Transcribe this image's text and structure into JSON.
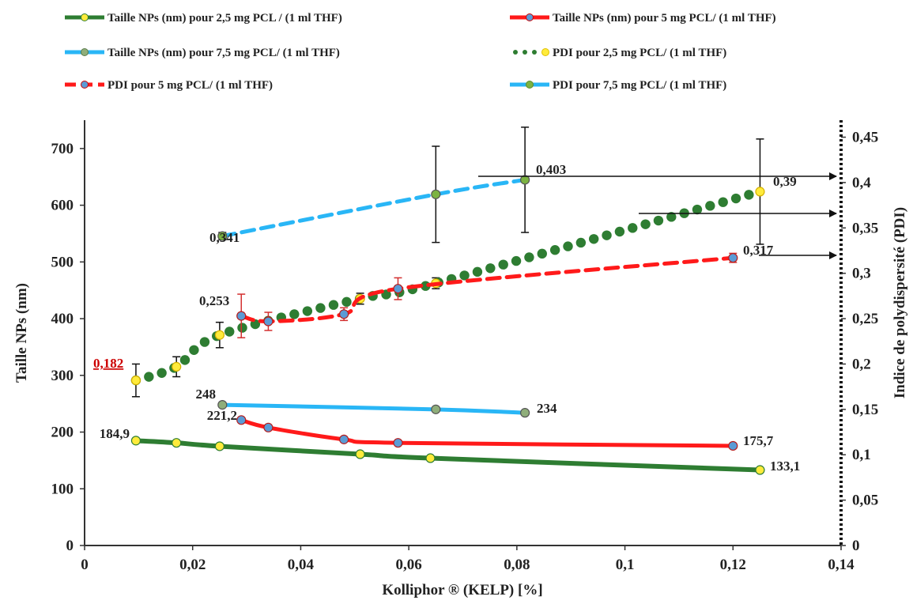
{
  "chart_data": {
    "type": "line",
    "xlabel": "Kolliphor ® (KELP) [%]",
    "ylabel": "Taille NPs (nm)",
    "y2label": "Indice de polydispersité (PDI)",
    "xlim": [
      0,
      0.14
    ],
    "ylim": [
      0,
      750
    ],
    "y2lim": [
      0,
      0.46875
    ],
    "x_ticks": [
      "0",
      "0,02",
      "0,04",
      "0,06",
      "0,08",
      "0,1",
      "0,12",
      "0,14"
    ],
    "y_ticks": [
      "0",
      "100",
      "200",
      "300",
      "400",
      "500",
      "600",
      "700"
    ],
    "y2_ticks": [
      "0",
      "0,05",
      "0,1",
      "0,15",
      "0,2",
      "0,25",
      "0,3",
      "0,35",
      "0,4",
      "0,45"
    ],
    "legend_position": "top",
    "series": [
      {
        "name": "Taille NPs (nm) pour 2,5 mg PCL / (1 ml THF)",
        "axis": "left",
        "style": "solid",
        "color": "#2e7d32",
        "marker_color": "#ffeb3b",
        "x": [
          0.0095,
          0.017,
          0.025,
          0.051,
          0.064,
          0.125
        ],
        "y": [
          184.9,
          181,
          175,
          161,
          154,
          133.1
        ]
      },
      {
        "name": "Taille NPs (nm) pour 5 mg PCL/ (1 ml THF)",
        "axis": "left",
        "style": "solid",
        "color": "#ff1a1a",
        "marker_color": "#5b9bd5",
        "x": [
          0.029,
          0.034,
          0.048,
          0.058,
          0.12
        ],
        "y": [
          221.2,
          208,
          187,
          181,
          175.7
        ]
      },
      {
        "name": "Taille NPs (nm) pour 7,5 mg PCL/ (1 ml THF)",
        "axis": "left",
        "style": "solid",
        "color": "#29b6f6",
        "marker_color": "#8fae7a",
        "x": [
          0.0255,
          0.065,
          0.0815
        ],
        "y": [
          248,
          240,
          234
        ]
      },
      {
        "name": "PDI pour 2,5 mg PCL/ (1 ml THF)",
        "axis": "right",
        "style": "dotted",
        "color": "#2e7d32",
        "marker_color": "#ffeb3b",
        "x": [
          0.0095,
          0.017,
          0.025,
          0.051,
          0.065,
          0.125
        ],
        "y": [
          0.182,
          0.197,
          0.232,
          0.272,
          0.289,
          0.39
        ],
        "err": [
          0.018,
          0.011,
          0.014,
          0.006,
          0.006,
          0.058
        ]
      },
      {
        "name": "PDI pour 5 mg PCL/ (1 ml THF)",
        "axis": "right",
        "style": "dashed",
        "color": "#ff1a1a",
        "marker_color": "#5b9bd5",
        "x": [
          0.029,
          0.034,
          0.048,
          0.058,
          0.12
        ],
        "y": [
          0.253,
          0.247,
          0.255,
          0.283,
          0.317
        ],
        "err": [
          0.024,
          0.01,
          0.007,
          0.012,
          0.005
        ]
      },
      {
        "name": "PDI pour 7,5 mg PCL/ (1 ml THF)",
        "axis": "right",
        "style": "dashed",
        "color": "#29b6f6",
        "marker_color": "#7cb342",
        "x": [
          0.0255,
          0.065,
          0.0815
        ],
        "y": [
          0.341,
          0.387,
          0.403
        ],
        "err": [
          0.004,
          0.053,
          0.058
        ]
      }
    ],
    "annotations": [
      "184,9",
      "221,2",
      "248",
      "234",
      "175,7",
      "133,1",
      "0,182",
      "0,253",
      "0,341",
      "0,403",
      "0,39",
      "0,317"
    ]
  }
}
